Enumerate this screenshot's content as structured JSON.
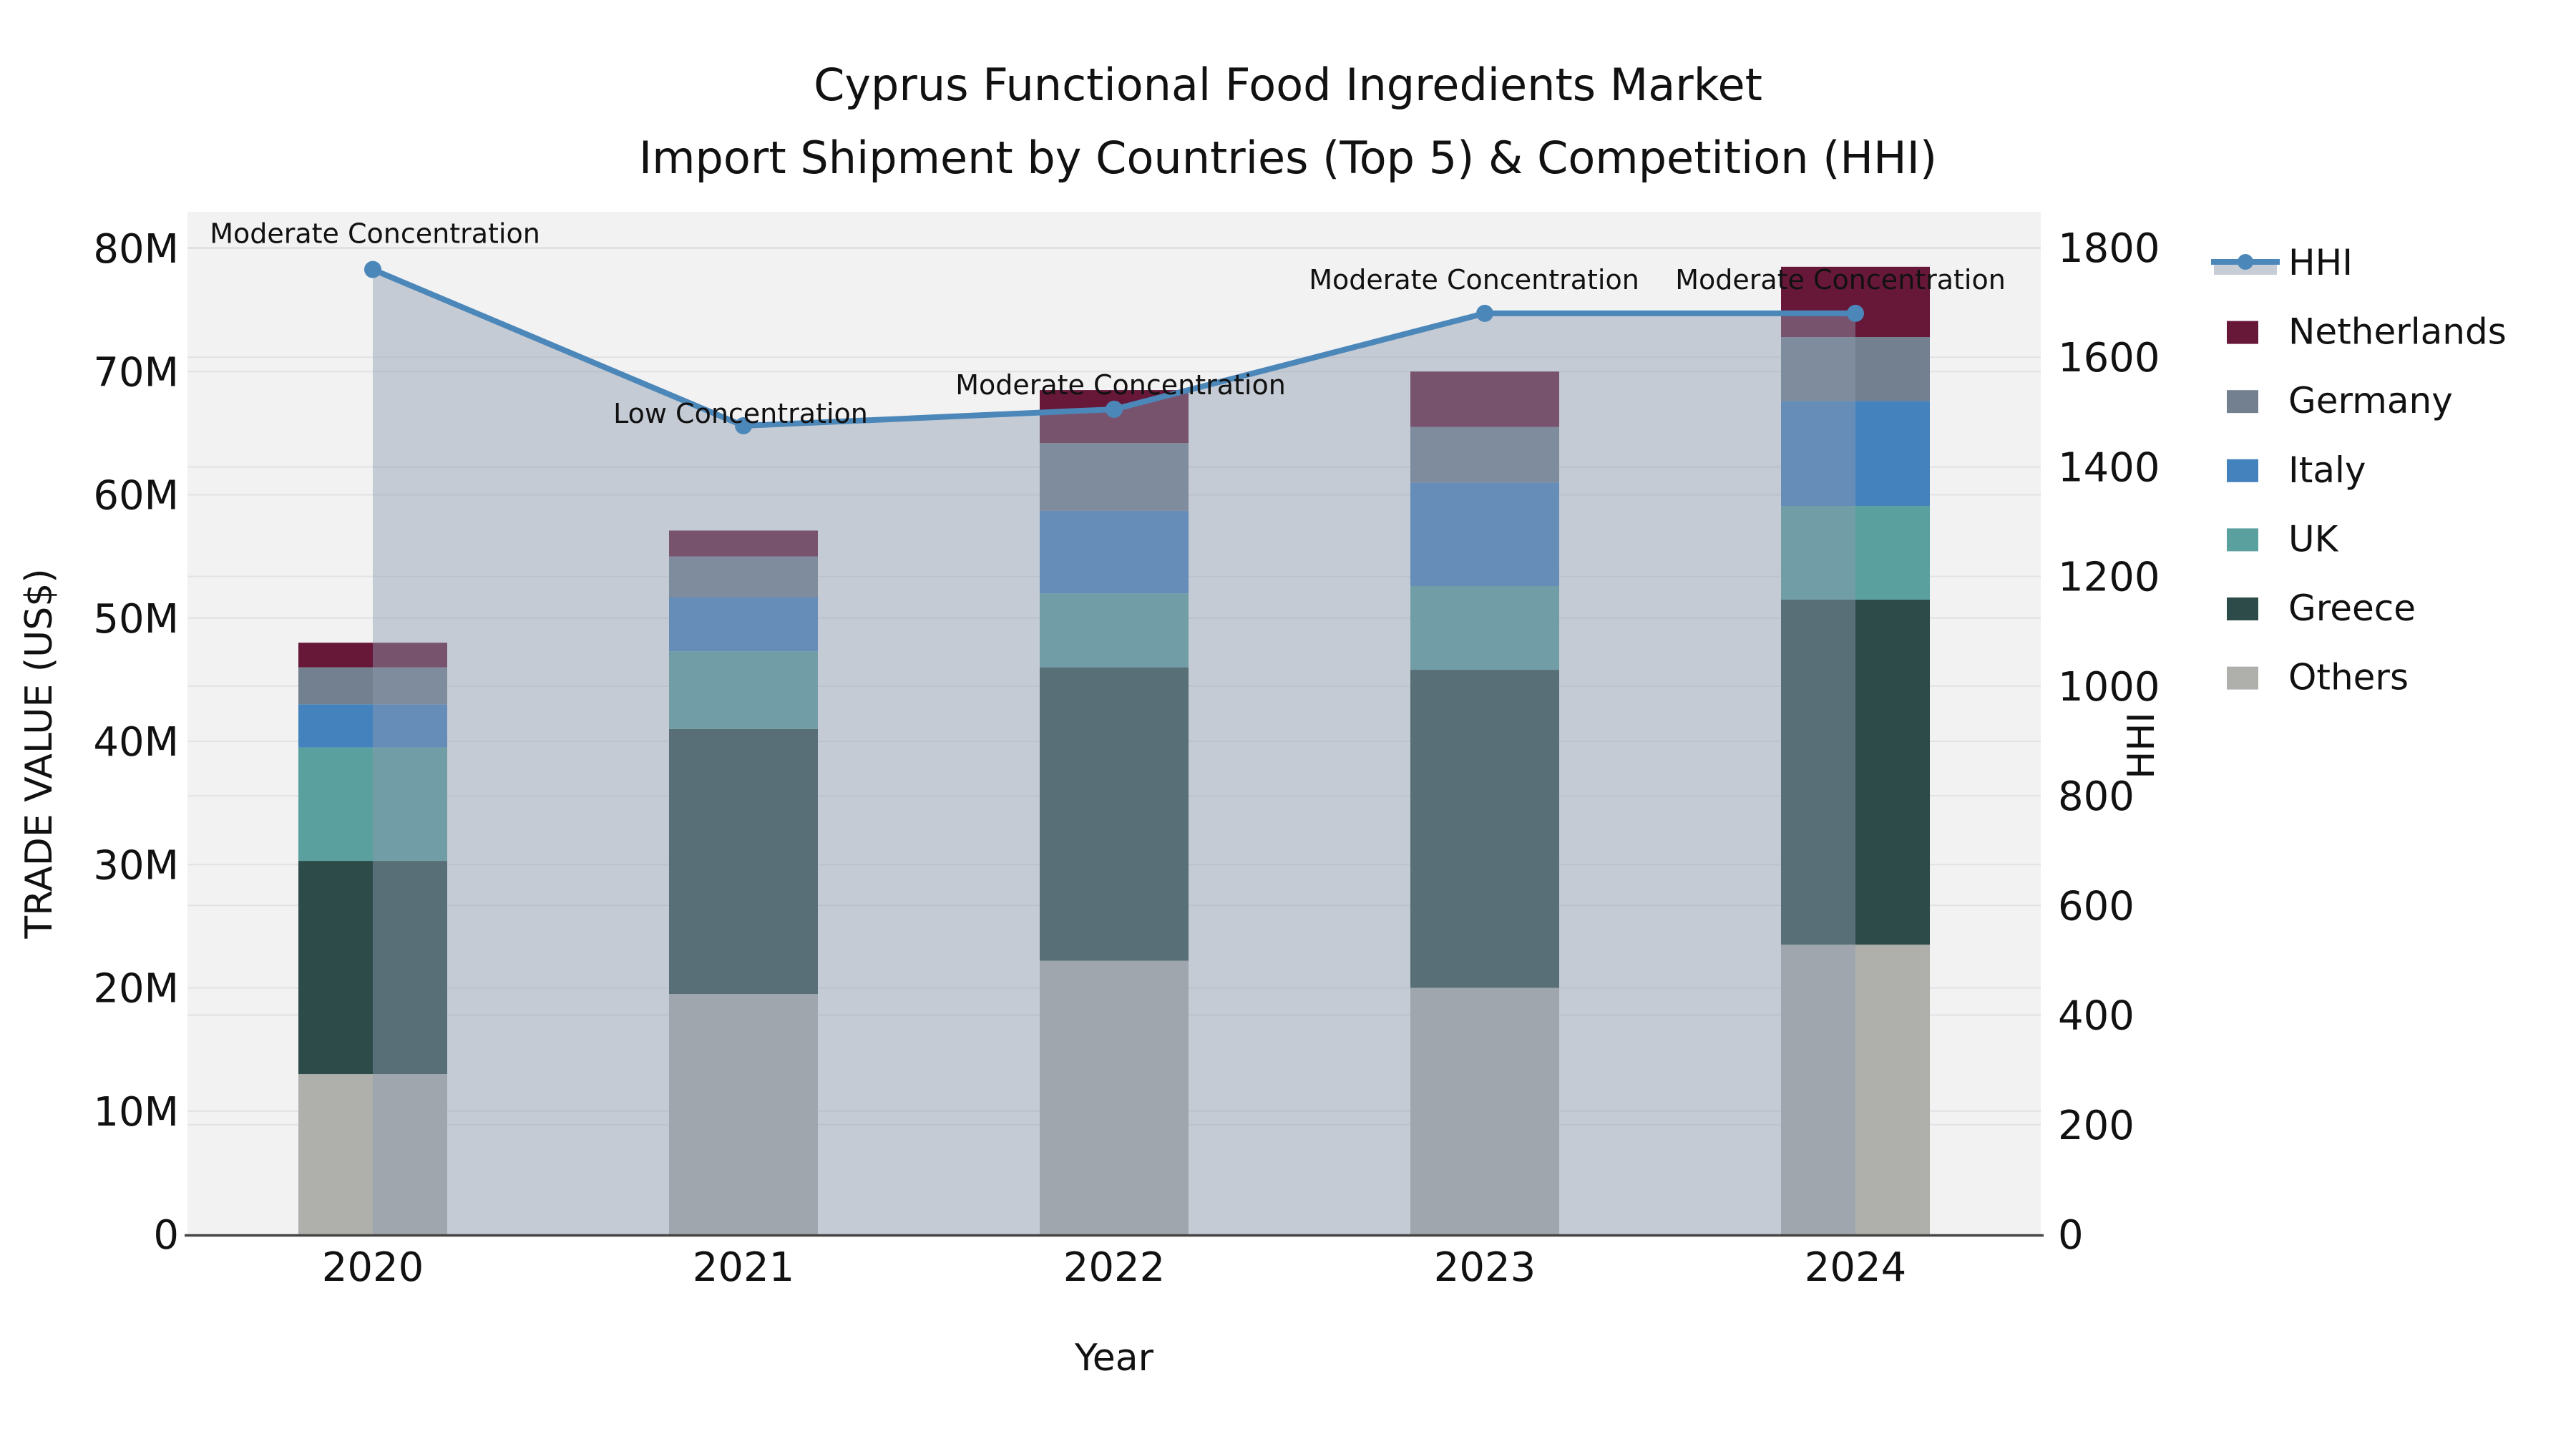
{
  "title": {
    "line1": "Cyprus Functional Food Ingredients Market",
    "line2": "Import Shipment by Countries (Top 5) & Competition (HHI)"
  },
  "axes": {
    "x": {
      "label": "Year",
      "tick_labels": [
        "2020",
        "2021",
        "2022",
        "2023",
        "2024"
      ]
    },
    "y_left": {
      "label": "TRADE VALUE (US$)",
      "tick_labels": [
        "0",
        "10M",
        "20M",
        "30M",
        "40M",
        "50M",
        "60M",
        "70M",
        "80M"
      ],
      "range_usd": [
        0,
        80000000
      ]
    },
    "y_right": {
      "label": "HHI",
      "tick_labels": [
        "0",
        "200",
        "400",
        "600",
        "800",
        "1000",
        "1200",
        "1400",
        "1600",
        "1800"
      ],
      "range": [
        0,
        1800
      ]
    }
  },
  "legend": {
    "items": [
      {
        "label": "HHI",
        "type": "line",
        "color": "#4C87B9"
      },
      {
        "label": "Netherlands",
        "type": "patch",
        "color": "#671839"
      },
      {
        "label": "Germany",
        "type": "patch",
        "color": "#72808F"
      },
      {
        "label": "Italy",
        "type": "patch",
        "color": "#4482BD"
      },
      {
        "label": "UK",
        "type": "patch",
        "color": "#5AA09E"
      },
      {
        "label": "Greece",
        "type": "patch",
        "color": "#2D4B49"
      },
      {
        "label": "Others",
        "type": "patch",
        "color": "#AFB0AC"
      }
    ]
  },
  "colors": {
    "plot_bg": "#F2F2F3",
    "grid": "#E2E2E5",
    "spine": "#444444",
    "text": "#111111",
    "hhi_line": "#4C87B9",
    "hhi_area": "#8F9CB0",
    "series": {
      "Netherlands": "#671839",
      "Germany": "#72808F",
      "Italy": "#4482BD",
      "UK": "#5AA09E",
      "Greece": "#2D4B49",
      "Others": "#AFB0AC"
    }
  },
  "chart_data": {
    "type": "bar",
    "stacked": true,
    "categories": [
      "2020",
      "2021",
      "2022",
      "2023",
      "2024"
    ],
    "unit": "US$ millions",
    "stack_order_note": "series listed bottom-to-top of stack",
    "series": [
      {
        "name": "Others",
        "values": [
          13.0,
          19.5,
          22.2,
          20.0,
          23.5
        ]
      },
      {
        "name": "Greece",
        "values": [
          17.3,
          21.5,
          23.8,
          25.8,
          28.0
        ]
      },
      {
        "name": "UK",
        "values": [
          9.2,
          6.3,
          6.0,
          6.8,
          7.6
        ]
      },
      {
        "name": "Italy",
        "values": [
          3.5,
          4.4,
          6.7,
          8.4,
          8.5
        ]
      },
      {
        "name": "Germany",
        "values": [
          3.0,
          3.3,
          5.5,
          4.5,
          5.2
        ]
      },
      {
        "name": "Netherlands",
        "values": [
          2.0,
          2.1,
          4.3,
          4.5,
          5.7
        ]
      }
    ],
    "bar_totals_millions": [
      48.0,
      57.1,
      68.5,
      70.0,
      78.5
    ],
    "line_overlay": {
      "name": "HHI",
      "axis": "right",
      "values": [
        1760,
        1475,
        1505,
        1680,
        1680
      ],
      "area_fill": true
    },
    "annotations": [
      {
        "category": "2020",
        "text": "Moderate Concentration"
      },
      {
        "category": "2021",
        "text": "Low Concentration"
      },
      {
        "category": "2022",
        "text": "Moderate Concentration"
      },
      {
        "category": "2023",
        "text": "Moderate Concentration"
      },
      {
        "category": "2024",
        "text": "Moderate Concentration"
      }
    ],
    "xlabel": "Year",
    "ylabel_left": "TRADE VALUE (US$)",
    "ylabel_right": "HHI",
    "ylim_left_millions": [
      0,
      80
    ],
    "ylim_right": [
      0,
      1800
    ],
    "grid": true,
    "legend_position": "right"
  }
}
